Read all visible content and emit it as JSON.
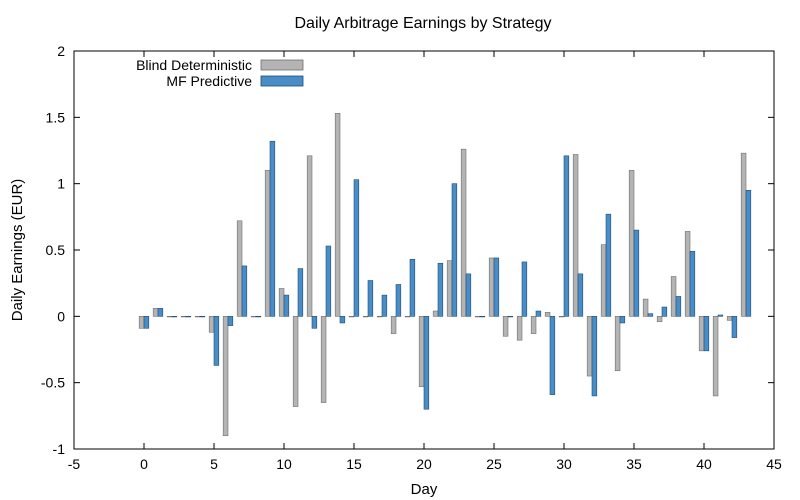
{
  "chart_data": {
    "type": "bar",
    "title": "Daily Arbitrage Earnings by Strategy",
    "xlabel": "Day",
    "ylabel": "Daily Earnings (EUR)",
    "xlim": [
      -5,
      45
    ],
    "ylim": [
      -1,
      2
    ],
    "xticks": [
      "-5",
      "0",
      "5",
      "10",
      "15",
      "20",
      "25",
      "30",
      "35",
      "40",
      "45"
    ],
    "yticks": [
      "-1",
      "-0.5",
      "0",
      "0.5",
      "1",
      "1.5",
      "2"
    ],
    "grid": false,
    "legend_position": "top-left",
    "x": [
      0,
      1,
      2,
      3,
      4,
      5,
      6,
      7,
      8,
      9,
      10,
      11,
      12,
      13,
      14,
      15,
      16,
      17,
      18,
      19,
      20,
      21,
      22,
      23,
      24,
      25,
      26,
      27,
      28,
      29,
      30,
      31,
      32,
      33,
      34,
      35,
      36,
      37,
      38,
      39,
      40,
      41,
      42,
      43
    ],
    "series": [
      {
        "name": "Blind Deterministic",
        "color": "#b4b4b4",
        "values": [
          -0.09,
          0.06,
          0,
          0,
          0,
          -0.12,
          -0.9,
          0.72,
          0,
          1.1,
          0.21,
          -0.68,
          1.21,
          -0.65,
          1.53,
          0,
          0,
          0,
          -0.13,
          0,
          -0.53,
          0.04,
          0.42,
          1.26,
          0,
          0.44,
          -0.15,
          -0.18,
          -0.13,
          0.03,
          0,
          1.22,
          -0.45,
          0.54,
          -0.41,
          1.1,
          0.13,
          -0.04,
          0.3,
          0.64,
          -0.26,
          -0.6,
          -0.03,
          1.23
        ]
      },
      {
        "name": "MF Predictive",
        "color": "#4a8cc6",
        "values": [
          -0.09,
          0.06,
          0,
          0,
          0,
          -0.37,
          -0.07,
          0.38,
          0,
          1.32,
          0.16,
          0.36,
          -0.09,
          0.53,
          -0.05,
          1.03,
          0.27,
          0.16,
          0.24,
          0.43,
          -0.7,
          0.4,
          1.0,
          0.32,
          0,
          0.44,
          0,
          0.41,
          0.04,
          -0.59,
          1.21,
          0.32,
          -0.6,
          0.77,
          -0.05,
          0.65,
          0.02,
          0.07,
          0.15,
          0.49,
          -0.26,
          0.01,
          -0.16,
          0.95
        ]
      }
    ]
  }
}
